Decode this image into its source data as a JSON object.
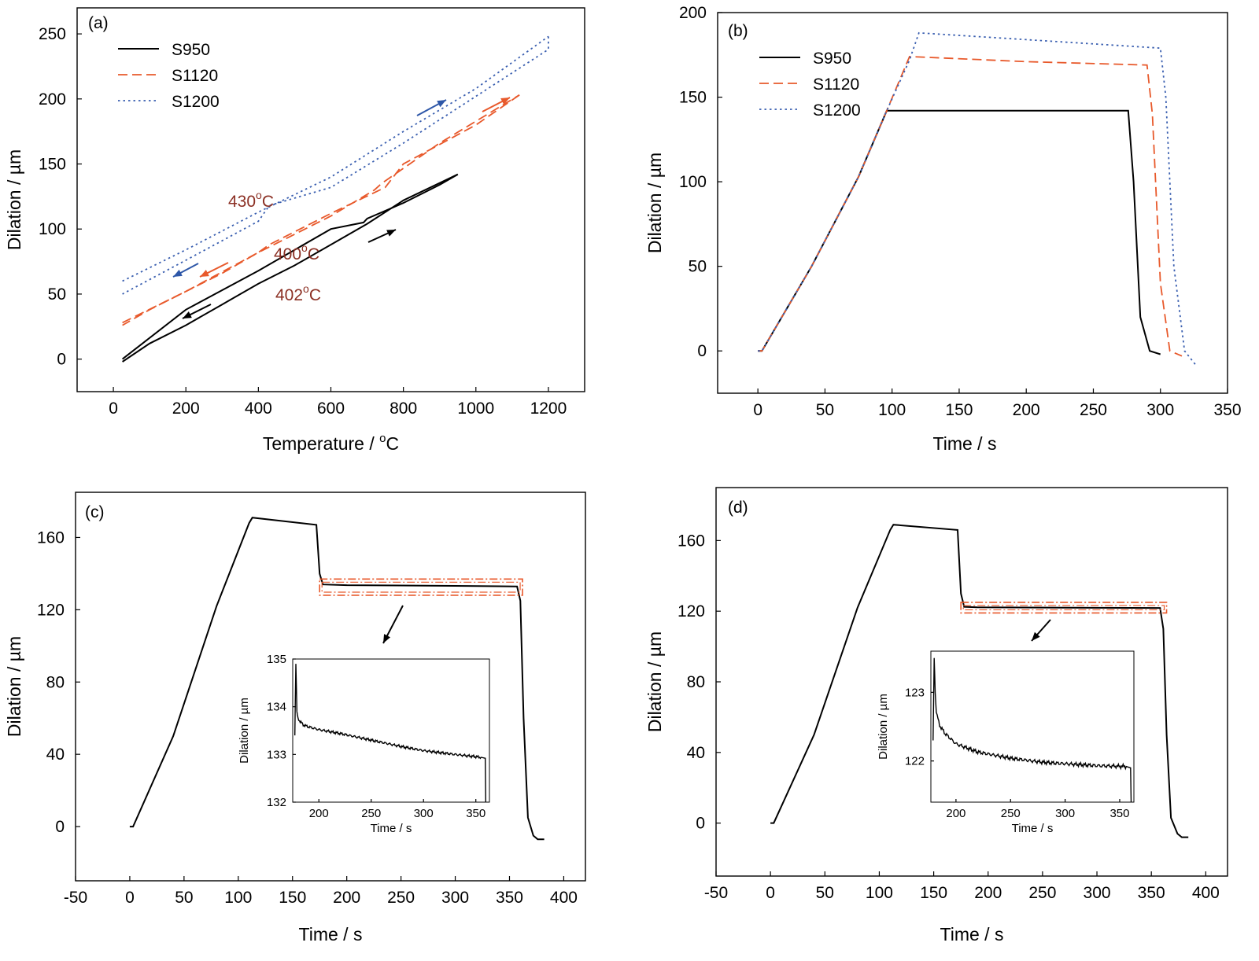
{
  "colors": {
    "S950": "#000000",
    "S1120": "#e8592b",
    "S1200": "#3a5fb0",
    "annotation": "#8b2f23",
    "arrow_blue": "#2e57a8",
    "highlight_box": "#e8592b"
  },
  "chart_data": [
    {
      "panel": "(a)",
      "type": "line",
      "xlabel": "Temperature / ",
      "xlabel_unit": "oC",
      "ylabel": "Dilation / µm",
      "xlim": [
        -100,
        1300
      ],
      "ylim": [
        -25,
        270
      ],
      "xticks": [
        "0",
        "200",
        "400",
        "600",
        "800",
        "1000",
        "1200"
      ],
      "yticks": [
        "0",
        "50",
        "100",
        "150",
        "200",
        "250"
      ],
      "legend": {
        "placement": "top-left",
        "entries": [
          "S950",
          "S1120",
          "S1200"
        ]
      },
      "series": [
        {
          "name": "S950",
          "style": "solid",
          "heating": [
            [
              25,
              0
            ],
            [
              200,
              38
            ],
            [
              400,
              68
            ],
            [
              600,
              100
            ],
            [
              690,
              105
            ],
            [
              700,
              108
            ],
            [
              800,
              120
            ],
            [
              900,
              134
            ],
            [
              950,
              142
            ]
          ],
          "cooling": [
            [
              950,
              142
            ],
            [
              800,
              122
            ],
            [
              700,
              104
            ],
            [
              600,
              88
            ],
            [
              500,
              72
            ],
            [
              400,
              58
            ],
            [
              300,
              42
            ],
            [
              200,
              26
            ],
            [
              100,
              12
            ],
            [
              25,
              -2
            ]
          ]
        },
        {
          "name": "S1120",
          "style": "dashed",
          "heating": [
            [
              25,
              28
            ],
            [
              200,
              52
            ],
            [
              400,
              82
            ],
            [
              600,
              110
            ],
            [
              720,
              130
            ],
            [
              740,
              135
            ],
            [
              900,
              166
            ],
            [
              1120,
              203
            ]
          ],
          "cooling": [
            [
              1120,
              203
            ],
            [
              1000,
              180
            ],
            [
              800,
              150
            ],
            [
              750,
              132
            ],
            [
              600,
              112
            ],
            [
              430,
              88
            ],
            [
              400,
              82
            ],
            [
              300,
              66
            ],
            [
              200,
              52
            ],
            [
              100,
              38
            ],
            [
              25,
              26
            ]
          ]
        },
        {
          "name": "S1200",
          "style": "dotted",
          "heating": [
            [
              25,
              60
            ],
            [
              200,
              84
            ],
            [
              400,
              113
            ],
            [
              600,
              140
            ],
            [
              800,
              175
            ],
            [
              1000,
              208
            ],
            [
              1200,
              248
            ]
          ],
          "cooling": [
            [
              1200,
              248
            ],
            [
              1200,
              238
            ],
            [
              1000,
              202
            ],
            [
              800,
              166
            ],
            [
              600,
              132
            ],
            [
              430,
              118
            ],
            [
              400,
              106
            ],
            [
              200,
              76
            ],
            [
              25,
              50
            ]
          ]
        }
      ],
      "annotations": [
        {
          "text": "430",
          "sup": "o",
          "unit": "C",
          "x": 270,
          "y": 123
        },
        {
          "text": "400",
          "sup": "o",
          "unit": "C",
          "x": 390,
          "y": 78
        },
        {
          "text": "402",
          "sup": "o",
          "unit": "C",
          "x": 395,
          "y": 45
        }
      ]
    },
    {
      "panel": "(b)",
      "type": "line",
      "xlabel": "Time / s",
      "ylabel": "Dilation / µm",
      "xlim": [
        -30,
        350
      ],
      "ylim": [
        -25,
        200
      ],
      "xticks": [
        "0",
        "50",
        "100",
        "150",
        "200",
        "250",
        "300",
        "350"
      ],
      "yticks": [
        "0",
        "50",
        "100",
        "150",
        "200"
      ],
      "legend": {
        "placement": "top-left",
        "entries": [
          "S950",
          "S1120",
          "S1200"
        ]
      },
      "series": [
        {
          "name": "S950",
          "style": "solid",
          "x": [
            0,
            3,
            40,
            75,
            96,
            150,
            200,
            276,
            280,
            285,
            292,
            300
          ],
          "y": [
            0,
            0,
            50,
            103,
            142,
            142,
            142,
            142,
            100,
            20,
            0,
            -2
          ]
        },
        {
          "name": "S1120",
          "style": "dashed",
          "x": [
            0,
            3,
            40,
            75,
            96,
            113,
            200,
            290,
            294,
            300,
            307,
            316
          ],
          "y": [
            0,
            0,
            50,
            103,
            142,
            174,
            171,
            169,
            140,
            40,
            0,
            -3
          ]
        },
        {
          "name": "S1200",
          "style": "dotted",
          "x": [
            0,
            3,
            40,
            75,
            96,
            113,
            120,
            200,
            300,
            304,
            310,
            318,
            327
          ],
          "y": [
            0,
            0,
            50,
            103,
            142,
            172,
            188,
            184,
            179,
            150,
            50,
            0,
            -9
          ]
        }
      ]
    },
    {
      "panel": "(c)",
      "type": "line",
      "xlabel": "Time / s",
      "ylabel": "Dilation / µm",
      "xlim": [
        -50,
        420
      ],
      "ylim": [
        -30,
        185
      ],
      "xticks": [
        "-50",
        "0",
        "50",
        "100",
        "150",
        "200",
        "250",
        "300",
        "350",
        "400"
      ],
      "yticks": [
        "0",
        "40",
        "80",
        "120",
        "160"
      ],
      "series": [
        {
          "name": "",
          "x": [
            0,
            3,
            40,
            80,
            110,
            113,
            172,
            175,
            178,
            200,
            300,
            357,
            360,
            363,
            367,
            372,
            376,
            382
          ],
          "y": [
            0,
            0,
            50,
            122,
            168,
            171,
            167,
            140,
            134,
            133.6,
            133.2,
            132.9,
            125,
            60,
            5,
            -5,
            -7,
            -7
          ]
        }
      ],
      "highlight_box": {
        "x": [
          175,
          362
        ],
        "y": [
          128,
          137
        ]
      },
      "inset": {
        "xlabel": "Time / s",
        "ylabel": "Dilation / µm",
        "xlim": [
          175,
          363
        ],
        "ylim": [
          132,
          135
        ],
        "xticks": [
          "200",
          "250",
          "300",
          "350"
        ],
        "yticks": [
          "132",
          "133",
          "134",
          "135"
        ],
        "series": {
          "x": [
            177,
            178,
            179,
            180,
            185,
            190,
            200,
            220,
            250,
            280,
            300,
            330,
            355,
            359,
            359.5
          ],
          "y": [
            133.4,
            134.9,
            133.9,
            133.75,
            133.62,
            133.58,
            133.52,
            133.44,
            133.3,
            133.16,
            133.08,
            133.0,
            132.94,
            132.92,
            132.0
          ]
        }
      }
    },
    {
      "panel": "(d)",
      "type": "line",
      "xlabel": "Time / s",
      "ylabel": "Dilation / µm",
      "xlim": [
        -50,
        420
      ],
      "ylim": [
        -30,
        190
      ],
      "xticks": [
        "-50",
        "0",
        "50",
        "100",
        "150",
        "200",
        "250",
        "300",
        "350",
        "400"
      ],
      "yticks": [
        "0",
        "40",
        "80",
        "120",
        "160"
      ],
      "series": [
        {
          "name": "",
          "x": [
            0,
            3,
            40,
            80,
            110,
            113,
            172,
            175,
            178,
            190,
            300,
            358,
            361,
            364,
            368,
            374,
            378,
            384
          ],
          "y": [
            0,
            0,
            50,
            122,
            166,
            169,
            166,
            130,
            122.5,
            122.2,
            121.9,
            121.8,
            110,
            50,
            3,
            -6,
            -8,
            -8
          ]
        }
      ],
      "highlight_box": {
        "x": [
          175,
          364
        ],
        "y": [
          119,
          125
        ]
      },
      "inset": {
        "xlabel": "Time / s",
        "ylabel": "Dilation / µm",
        "xlim": [
          177,
          363
        ],
        "ylim": [
          121.4,
          123.6
        ],
        "xticks": [
          "200",
          "250",
          "300",
          "350"
        ],
        "yticks": [
          "122",
          "123"
        ],
        "series": {
          "x": [
            179,
            180,
            181,
            182,
            185,
            190,
            200,
            220,
            250,
            280,
            300,
            330,
            356,
            360,
            360.5
          ],
          "y": [
            122.3,
            123.5,
            123.0,
            122.7,
            122.52,
            122.4,
            122.25,
            122.13,
            122.04,
            121.98,
            121.96,
            121.93,
            121.92,
            121.9,
            121.4
          ]
        }
      }
    }
  ]
}
